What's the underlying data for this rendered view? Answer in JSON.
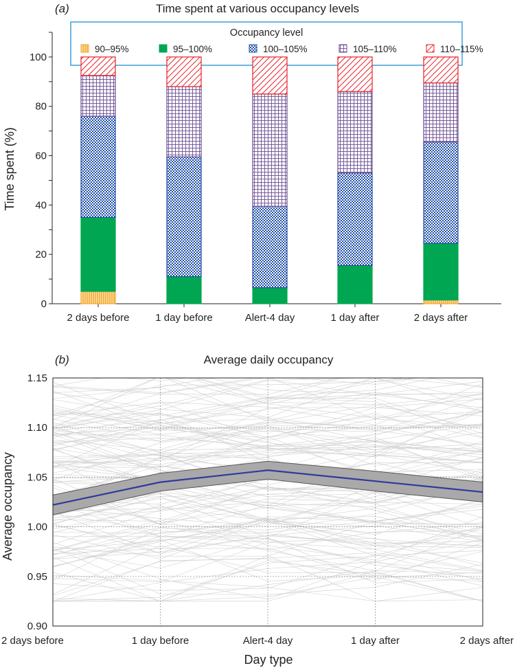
{
  "charts": [
    {
      "panel_label_open": "(",
      "panel_label_letter": "a",
      "panel_label_close": ")",
      "title": "Time spent at various occupancy levels",
      "ylabel": "Time spent (%)",
      "legend_title": "Occupancy level"
    },
    {
      "panel_label_open": "(",
      "panel_label_letter": "b",
      "panel_label_close": ")",
      "title": "Average daily occupancy",
      "ylabel": "Average occupancy",
      "xlabel": "Day type"
    }
  ],
  "chart_data": [
    {
      "type": "bar",
      "stacked": true,
      "title": "Time spent at various occupancy levels",
      "xlabel": "",
      "ylabel": "Time spent (%)",
      "ylim": [
        0,
        110
      ],
      "yticks": [
        0,
        20,
        40,
        60,
        80,
        100
      ],
      "categories": [
        "2 days before",
        "1 day before",
        "Alert-4 day",
        "1 day after",
        "2 days after"
      ],
      "legend_title": "Occupancy level",
      "legend_position": "top",
      "series": [
        {
          "name": "90–95%",
          "color": "#f5a623",
          "pattern": "vertical-lines",
          "values": [
            5,
            0,
            0,
            0,
            1.5
          ]
        },
        {
          "name": "95–100%",
          "color": "#00a651",
          "pattern": "solid",
          "values": [
            30,
            11,
            6.5,
            15.5,
            23
          ]
        },
        {
          "name": "100–105%",
          "color": "#1f4fa8",
          "pattern": "checker",
          "values": [
            41,
            48.5,
            33,
            37.5,
            41
          ]
        },
        {
          "name": "105–110%",
          "color": "#6a4c93",
          "pattern": "grid",
          "values": [
            16.5,
            28.5,
            45.5,
            33,
            24
          ]
        },
        {
          "name": "110–115%",
          "color": "#e8202a",
          "pattern": "diagonal-lines",
          "values": [
            7.5,
            12,
            15,
            14,
            10.5
          ]
        }
      ]
    },
    {
      "type": "line",
      "title": "Average daily occupancy",
      "xlabel": "Day type",
      "ylabel": "Average occupancy",
      "categories": [
        "2 days before",
        "1 day before",
        "Alert-4 day",
        "1 day after",
        "2 days after"
      ],
      "ylim": [
        0.9,
        1.15
      ],
      "yticks": [
        "0.90",
        "0.95",
        "1.00",
        "1.05",
        "1.10",
        "1.15"
      ],
      "grid": true,
      "series": [
        {
          "values": [
            1.022,
            1.045,
            1.057,
            1.046,
            1.035
          ],
          "color": "#2e3b9b"
        },
        {
          "values": [
            1.032,
            1.054,
            1.066,
            1.056,
            1.045
          ],
          "color": "#555555"
        },
        {
          "values": [
            1.012,
            1.036,
            1.048,
            1.036,
            1.025
          ],
          "color": "#555555"
        }
      ],
      "background_lines": "many light-grey individual trajectories ranging roughly 0.93–1.15"
    }
  ]
}
